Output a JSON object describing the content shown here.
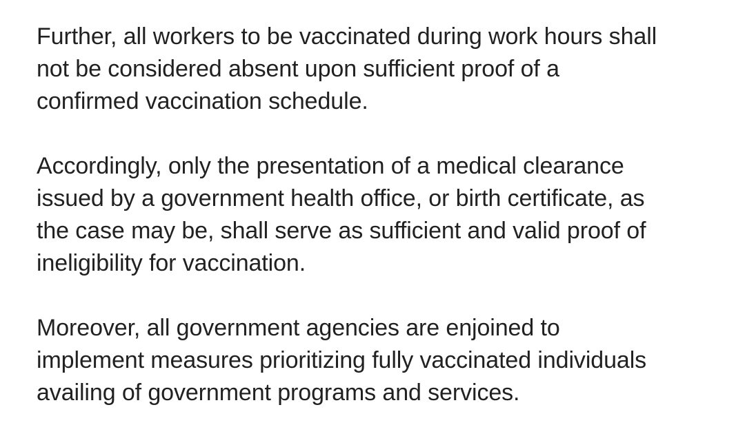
{
  "document": {
    "paragraphs": [
      {
        "lines": [
          "Further, all workers to be vaccinated during work hours shall",
          "not be considered absent upon sufficient proof of a",
          "confirmed vaccination schedule."
        ]
      },
      {
        "lines": [
          "Accordingly, only the presentation of a medical clearance",
          "issued by a government health office, or birth certificate, as",
          "the case may be, shall serve as sufficient and valid proof of",
          "ineligibility for vaccination."
        ]
      },
      {
        "lines": [
          "Moreover, all government agencies are enjoined to",
          "implement measures prioritizing fully vaccinated individuals",
          "availing of government programs and services."
        ]
      }
    ]
  }
}
